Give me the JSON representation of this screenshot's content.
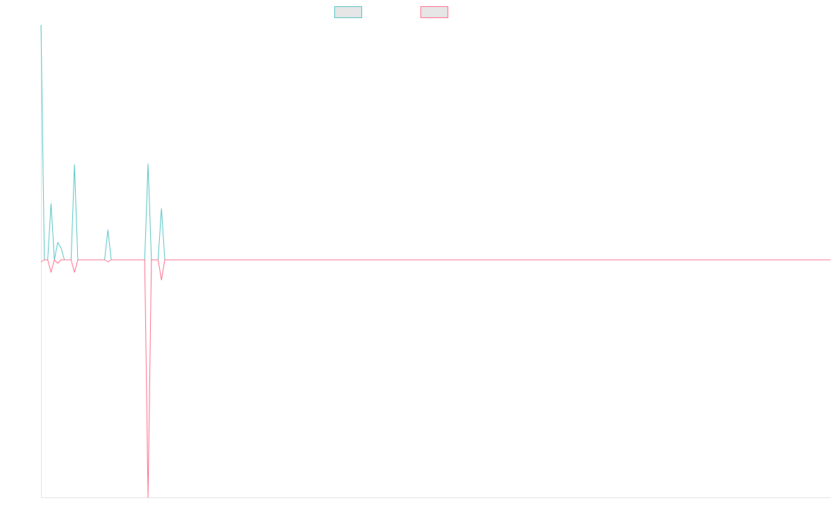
{
  "chart_data": {
    "type": "line",
    "x": [
      0,
      1,
      2,
      3,
      4,
      5,
      6,
      7,
      9,
      10,
      11,
      19,
      20,
      21,
      31,
      32,
      33,
      35,
      36,
      37,
      236
    ],
    "xlim": [
      0,
      236
    ],
    "ylim": [
      -3.42,
      3.38
    ],
    "series": [
      {
        "color": "#4bc0c0",
        "values": [
          3.38,
          0,
          0,
          0.81,
          0,
          0.25,
          0.17,
          0,
          0,
          1.37,
          0,
          0,
          0.43,
          0,
          0,
          1.38,
          0,
          0,
          0.74,
          0,
          0
        ]
      },
      {
        "color": "#ff6384",
        "values": [
          -0.03,
          0,
          0,
          -0.18,
          0,
          -0.05,
          0,
          0,
          0,
          -0.18,
          0,
          0,
          -0.03,
          0,
          0,
          -3.42,
          0,
          0,
          -0.29,
          0,
          0
        ]
      }
    ]
  }
}
